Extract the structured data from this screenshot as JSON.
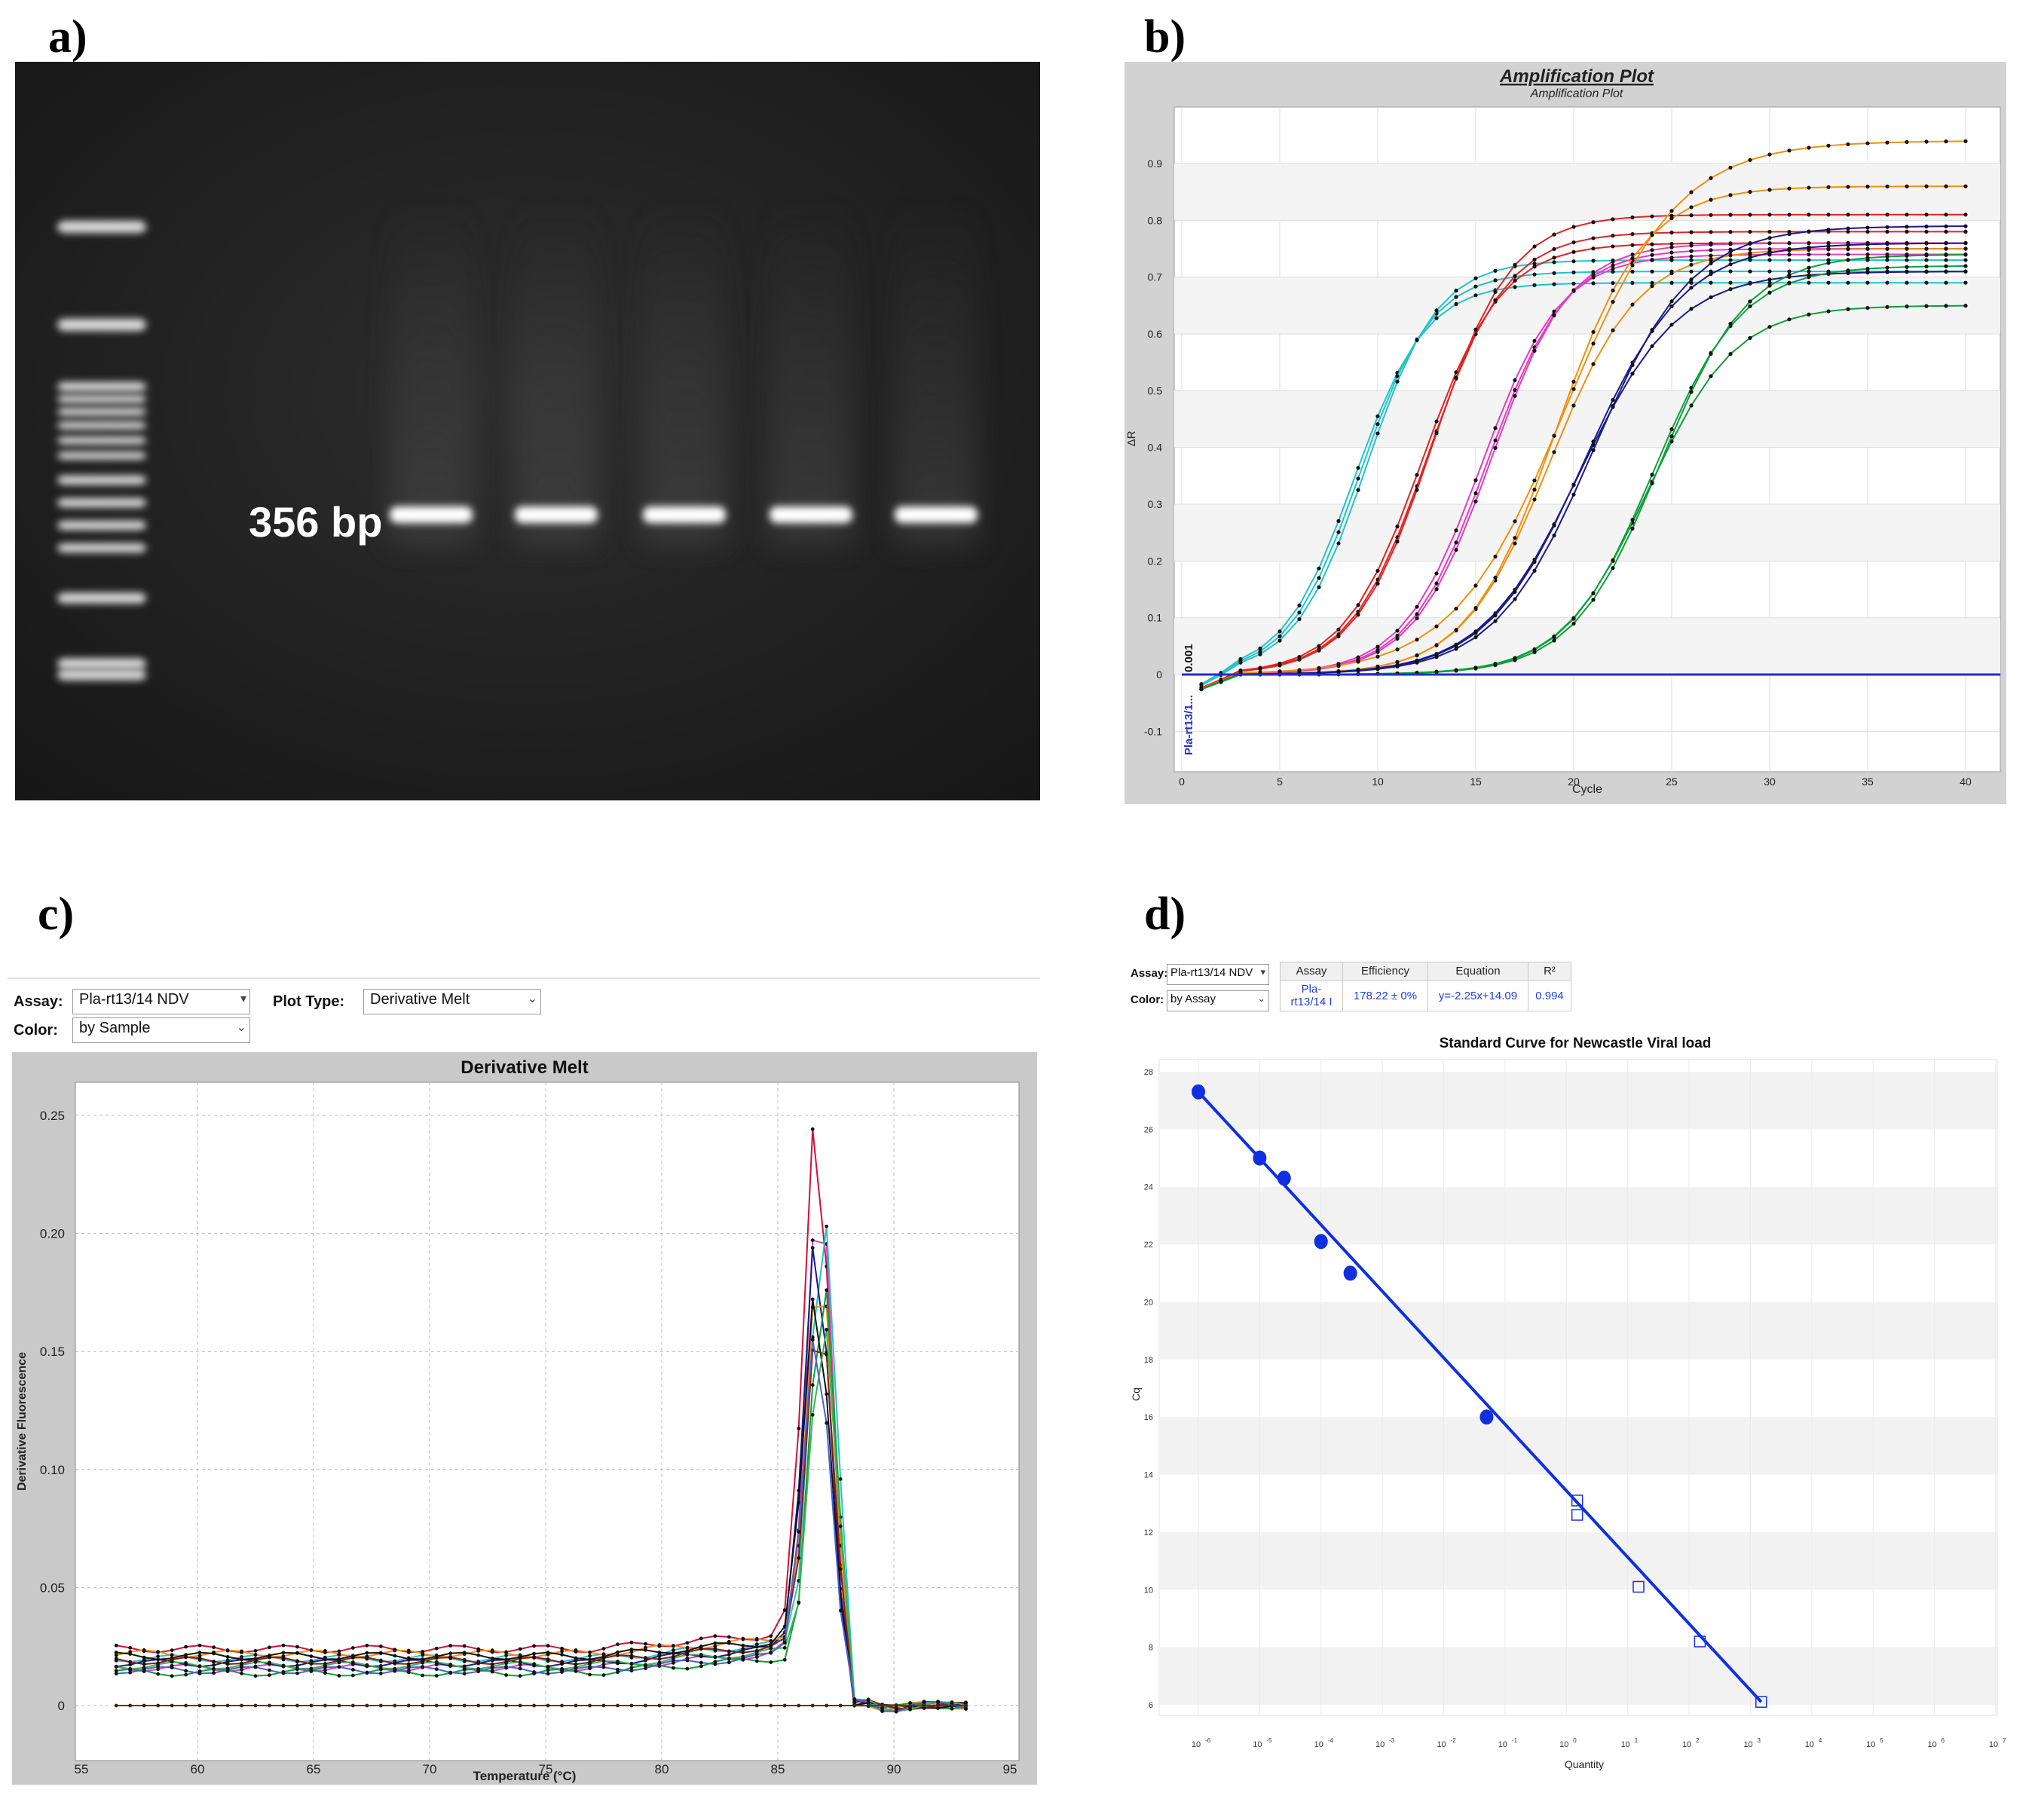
{
  "panel_labels": {
    "a": "a)",
    "b": "b)",
    "c": "c)",
    "d": "d)"
  },
  "gel": {
    "band_label": "356 bp",
    "ladder_bands": 13,
    "sample_lanes": 5
  },
  "amp_plot": {
    "title": "Amplification Plot",
    "subtitle": "Amplification Plot",
    "xlabel": "Cycle",
    "ylabel": "ΔR",
    "threshold_label": "Pla-rt13/1...",
    "threshold_value": "0.001",
    "x_ticks": [
      "0",
      "5",
      "10",
      "15",
      "20",
      "25",
      "30",
      "35",
      "40"
    ],
    "y_ticks": [
      "-0.1",
      "0",
      "0.1",
      "0.2",
      "0.3",
      "0.4",
      "0.5",
      "0.6",
      "0.7",
      "0.8",
      "0.9"
    ]
  },
  "melt": {
    "assay_label": "Assay:",
    "assay_value": "Pla-rt13/14 NDV",
    "plot_type_label": "Plot Type:",
    "plot_type_value": "Derivative Melt",
    "color_label": "Color:",
    "color_value": "by Sample",
    "title": "Derivative Melt",
    "xlabel": "Temperature (°C)",
    "ylabel": "Derivative Fluorescence",
    "x_ticks": [
      "55",
      "60",
      "65",
      "70",
      "75",
      "80",
      "85",
      "90",
      "95"
    ],
    "y_ticks": [
      "0",
      "0.05",
      "0.10",
      "0.15",
      "0.20",
      "0.25"
    ]
  },
  "std": {
    "assay_label": "Assay:",
    "assay_value": "Pla-rt13/14 NDV",
    "color_label": "Color:",
    "color_value": "by Assay",
    "table_headers": [
      "Assay",
      "Efficiency",
      "Equation",
      "R²"
    ],
    "table_values": [
      "Pla-rt13/14 I",
      "178.22 ± 0%",
      "y=-2.25x+14.09",
      "0.994"
    ],
    "title": "Standard Curve for Newcastle Viral load",
    "xlabel": "Quantity",
    "ylabel": "Cq",
    "y_ticks": [
      "6",
      "8",
      "10",
      "12",
      "14",
      "16",
      "18",
      "20",
      "22",
      "24",
      "26",
      "28"
    ],
    "x_tick_exponents": [
      "-6",
      "-5",
      "-4",
      "-3",
      "-2",
      "-1",
      "0",
      "1",
      "2",
      "3",
      "4",
      "5",
      "6",
      "7"
    ]
  },
  "chart_data": [
    {
      "type": "line",
      "panel": "b",
      "title": "Amplification Plot",
      "xlabel": "Cycle",
      "ylabel": "ΔR",
      "xlim": [
        0,
        42
      ],
      "ylim": [
        -0.13,
        0.98
      ],
      "series": [
        {
          "color": "#22c3c9",
          "values": {
            "ct": 7.0,
            "plateau": 0.69,
            "k": 0.55
          }
        },
        {
          "color": "#22c3c9",
          "values": {
            "ct": 7.3,
            "plateau": 0.71,
            "k": 0.55
          }
        },
        {
          "color": "#22c3c9",
          "values": {
            "ct": 7.6,
            "plateau": 0.73,
            "k": 0.55
          }
        },
        {
          "color": "#e02424",
          "values": {
            "ct": 10.5,
            "plateau": 0.76,
            "k": 0.5
          }
        },
        {
          "color": "#e02424",
          "values": {
            "ct": 10.8,
            "plateau": 0.78,
            "k": 0.5
          }
        },
        {
          "color": "#e02424",
          "values": {
            "ct": 11.0,
            "plateau": 0.81,
            "k": 0.5
          }
        },
        {
          "color": "#e23cc0",
          "values": {
            "ct": 13.5,
            "plateau": 0.74,
            "k": 0.5
          }
        },
        {
          "color": "#e23cc0",
          "values": {
            "ct": 13.8,
            "plateau": 0.75,
            "k": 0.5
          }
        },
        {
          "color": "#e23cc0",
          "values": {
            "ct": 14.0,
            "plateau": 0.76,
            "k": 0.5
          }
        },
        {
          "color": "#f09010",
          "values": {
            "ct": 17.0,
            "plateau": 0.75,
            "k": 0.45
          }
        },
        {
          "color": "#f09010",
          "values": {
            "ct": 17.3,
            "plateau": 0.86,
            "k": 0.45
          }
        },
        {
          "color": "#f09010",
          "values": {
            "ct": 17.8,
            "plateau": 0.94,
            "k": 0.35
          }
        },
        {
          "color": "#1a1a8a",
          "values": {
            "ct": 18.5,
            "plateau": 0.71,
            "k": 0.4
          }
        },
        {
          "color": "#1a1a8a",
          "values": {
            "ct": 18.8,
            "plateau": 0.76,
            "k": 0.4
          }
        },
        {
          "color": "#1a1a8a",
          "values": {
            "ct": 19.2,
            "plateau": 0.79,
            "k": 0.4
          }
        },
        {
          "color": "#0f9e3a",
          "values": {
            "ct": 22.0,
            "plateau": 0.65,
            "k": 0.45
          }
        },
        {
          "color": "#0f9e3a",
          "values": {
            "ct": 22.3,
            "plateau": 0.72,
            "k": 0.45
          }
        },
        {
          "color": "#0f9e3a",
          "values": {
            "ct": 22.6,
            "plateau": 0.74,
            "k": 0.45
          }
        }
      ],
      "threshold": 0.0
    },
    {
      "type": "line",
      "panel": "c",
      "title": "Derivative Melt",
      "xlabel": "Temperature (°C)",
      "ylabel": "Derivative Fluorescence",
      "xlim": [
        55,
        95
      ],
      "ylim": [
        -0.02,
        0.27
      ],
      "peak_temperature": 86.8,
      "series_colors": [
        "#d0103a",
        "#e23cc0",
        "#22c3c9",
        "#1a1a8a",
        "#f09010",
        "#0f9e3a",
        "#111111",
        "#8b1a1a",
        "#3cb44b",
        "#4363d8"
      ],
      "peak_heights": [
        0.25,
        0.225,
        0.21,
        0.2,
        0.19,
        0.18,
        0.175,
        0.17,
        0.165,
        0.16
      ],
      "baseline_levels": [
        0.024,
        0.016,
        0.02,
        0.018,
        0.022,
        0.014,
        0.021,
        0.019,
        0.017,
        0.015
      ],
      "flat_series": {
        "color": "#5a3a1a",
        "value": 0
      }
    },
    {
      "type": "scatter",
      "panel": "d",
      "title": "Standard Curve for Newcastle Viral load",
      "xlabel": "Quantity",
      "ylabel": "Cq",
      "x_scale": "log",
      "ylim": [
        5,
        29
      ],
      "equation": "y=-2.25x+14.09",
      "r2": 0.994,
      "standards": [
        {
          "x": 1e-06,
          "y": 27.3
        },
        {
          "x": 1e-05,
          "y": 25.0
        },
        {
          "x": 2.5e-05,
          "y": 24.3
        },
        {
          "x": 0.0001,
          "y": 22.1
        },
        {
          "x": 0.0003,
          "y": 21.0
        },
        {
          "x": 0.05,
          "y": 16.0
        }
      ],
      "unknowns": [
        {
          "x": 1.5,
          "y": 13.1
        },
        {
          "x": 1.5,
          "y": 12.6
        },
        {
          "x": 15,
          "y": 10.1
        },
        {
          "x": 150,
          "y": 8.2
        },
        {
          "x": 1500,
          "y": 6.1
        }
      ]
    }
  ]
}
